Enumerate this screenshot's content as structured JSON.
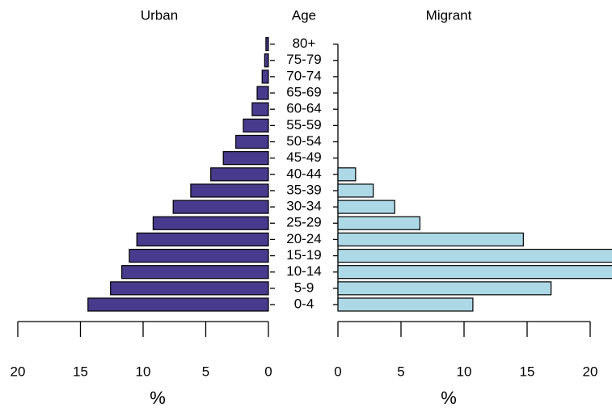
{
  "chart_data": {
    "type": "pyramid",
    "category_label": "Age",
    "categories": [
      "0-4",
      "5-9",
      "10-14",
      "15-19",
      "20-24",
      "25-29",
      "30-34",
      "35-39",
      "40-44",
      "45-49",
      "50-54",
      "55-59",
      "60-64",
      "65-69",
      "70-74",
      "75-79",
      "80+"
    ],
    "series": [
      {
        "name": "Urban",
        "color": "#483a8c",
        "xlim": [
          20,
          0
        ],
        "xticks": [
          20,
          15,
          10,
          5,
          0
        ],
        "xlabel": "%",
        "values": [
          14.4,
          12.6,
          11.7,
          11.1,
          10.5,
          9.2,
          7.6,
          6.2,
          4.6,
          3.6,
          2.6,
          2.0,
          1.3,
          0.9,
          0.5,
          0.3,
          0.2
        ]
      },
      {
        "name": "Migrant",
        "color": "#add8e6",
        "xlim": [
          0,
          20
        ],
        "xticks": [
          0,
          5,
          10,
          15,
          20
        ],
        "xlabel": "%",
        "values": [
          10.7,
          16.9,
          22,
          23,
          14.7,
          6.5,
          4.5,
          2.8,
          1.4,
          0,
          0,
          0,
          0,
          0,
          0,
          0,
          0
        ]
      }
    ]
  }
}
